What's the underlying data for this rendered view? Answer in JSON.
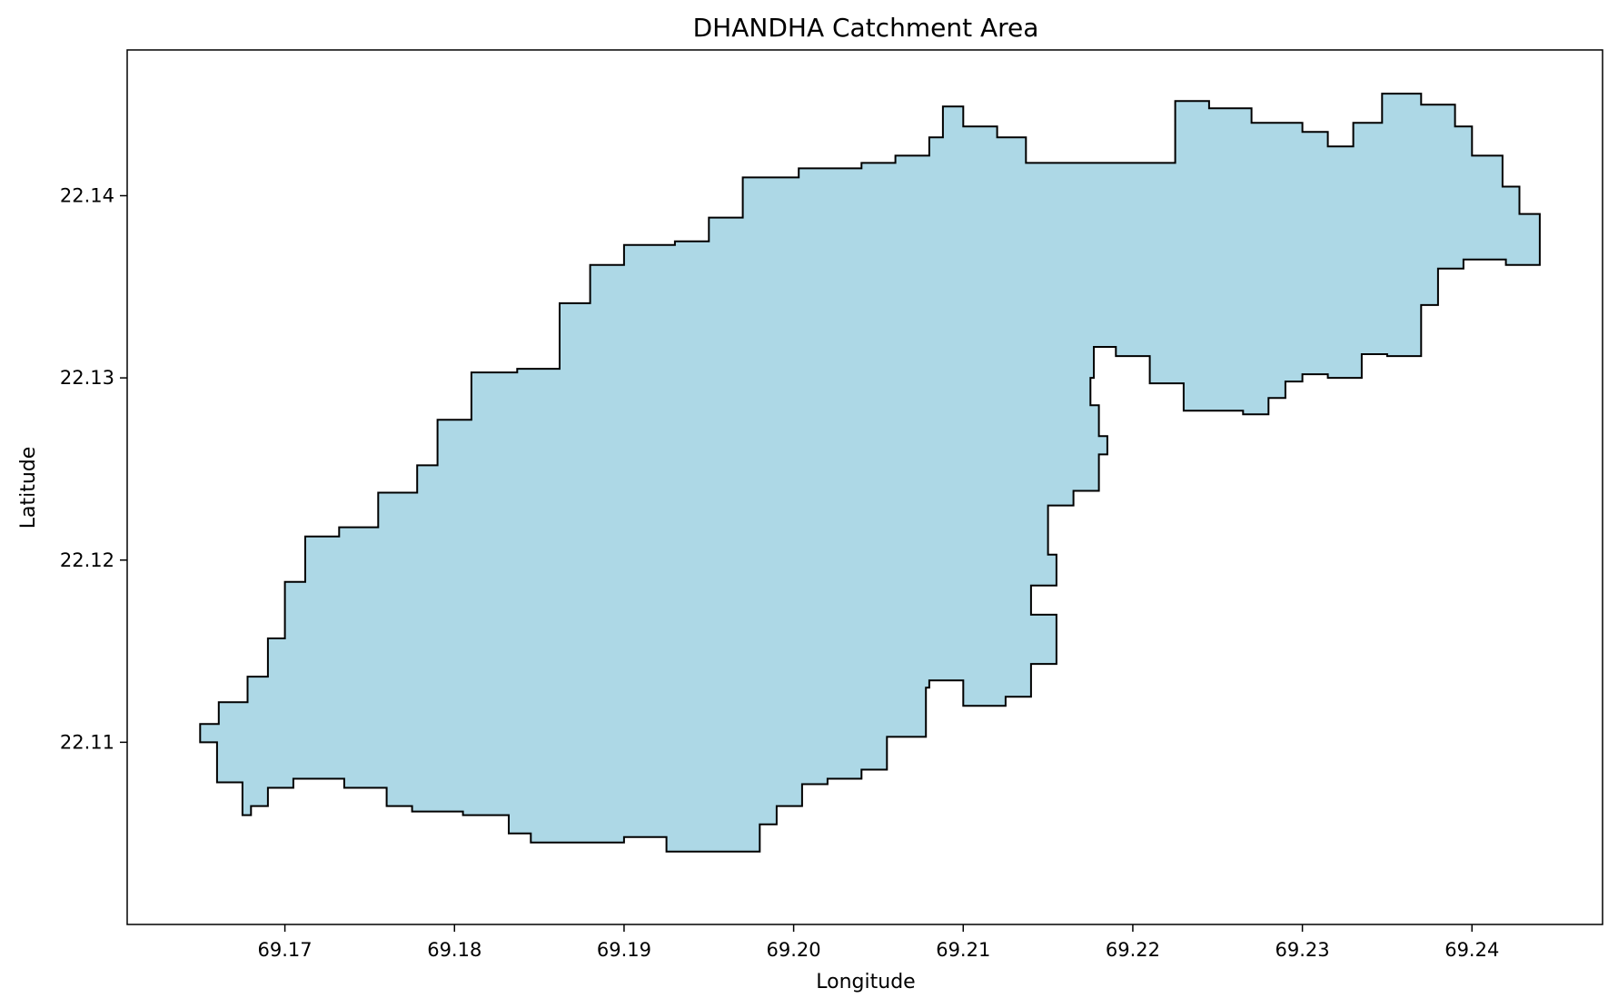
{
  "chart_data": {
    "type": "map",
    "title": "DHANDHA Catchment Area",
    "xlabel": "Longitude",
    "ylabel": "Latitude",
    "xlim": [
      69.1607,
      69.2477
    ],
    "ylim": [
      22.1,
      22.148
    ],
    "xticks": [
      69.17,
      69.18,
      69.19,
      69.2,
      69.21,
      69.22,
      69.23,
      69.24
    ],
    "xtick_labels": [
      "69.17",
      "69.18",
      "69.19",
      "69.20",
      "69.21",
      "69.22",
      "69.23",
      "69.24"
    ],
    "yticks": [
      22.11,
      22.12,
      22.13,
      22.14
    ],
    "ytick_labels": [
      "22.11",
      "22.12",
      "22.13",
      "22.14"
    ],
    "grid": false,
    "polygon": {
      "name": "DHANDHA",
      "fill": "#add8e6",
      "edge": "#000000",
      "coordinates": [
        [
          69.165,
          22.111
        ],
        [
          69.1661,
          22.1122
        ],
        [
          69.1678,
          22.1136
        ],
        [
          69.169,
          22.1157
        ],
        [
          69.17,
          22.1188
        ],
        [
          69.1712,
          22.1213
        ],
        [
          69.1732,
          22.1218
        ],
        [
          69.1755,
          22.1237
        ],
        [
          69.1778,
          22.1252
        ],
        [
          69.179,
          22.1277
        ],
        [
          69.18,
          22.1277
        ],
        [
          69.181,
          22.1303
        ],
        [
          69.1837,
          22.1305
        ],
        [
          69.1862,
          22.1341
        ],
        [
          69.188,
          22.1362
        ],
        [
          69.19,
          22.1373
        ],
        [
          69.193,
          22.1375
        ],
        [
          69.195,
          22.1388
        ],
        [
          69.197,
          22.141
        ],
        [
          69.199,
          22.141
        ],
        [
          69.2003,
          22.1415
        ],
        [
          69.204,
          22.1418
        ],
        [
          69.206,
          22.1422
        ],
        [
          69.208,
          22.1432
        ],
        [
          69.2088,
          22.1449
        ],
        [
          69.21,
          22.1438
        ],
        [
          69.212,
          22.1432
        ],
        [
          69.2137,
          22.1418
        ],
        [
          69.216,
          22.1418
        ],
        [
          69.218,
          22.1418
        ],
        [
          69.22,
          22.1418
        ],
        [
          69.2225,
          22.1452
        ],
        [
          69.2245,
          22.1448
        ],
        [
          69.227,
          22.144
        ],
        [
          69.23,
          22.1435
        ],
        [
          69.2315,
          22.1427
        ],
        [
          69.233,
          22.144
        ],
        [
          69.2347,
          22.1456
        ],
        [
          69.237,
          22.145
        ],
        [
          69.239,
          22.1438
        ],
        [
          69.24,
          22.1422
        ],
        [
          69.2418,
          22.1405
        ],
        [
          69.2428,
          22.139
        ],
        [
          69.244,
          22.1378
        ],
        [
          69.244,
          22.1362
        ],
        [
          69.242,
          22.1365
        ],
        [
          69.2395,
          22.136
        ],
        [
          69.238,
          22.134
        ],
        [
          69.237,
          22.1312
        ],
        [
          69.235,
          22.1313
        ],
        [
          69.2335,
          22.13
        ],
        [
          69.2315,
          22.1302
        ],
        [
          69.23,
          22.1298
        ],
        [
          69.229,
          22.1289
        ],
        [
          69.228,
          22.128
        ],
        [
          69.2265,
          22.1282
        ],
        [
          69.225,
          22.1282
        ],
        [
          69.223,
          22.1297
        ],
        [
          69.221,
          22.1312
        ],
        [
          69.219,
          22.1317
        ],
        [
          69.2177,
          22.13
        ],
        [
          69.2175,
          22.1285
        ],
        [
          69.218,
          22.1268
        ],
        [
          69.2185,
          22.1258
        ],
        [
          69.218,
          22.1238
        ],
        [
          69.2165,
          22.123
        ],
        [
          69.215,
          22.1203
        ],
        [
          69.2155,
          22.1186
        ],
        [
          69.214,
          22.117
        ],
        [
          69.2155,
          22.1157
        ],
        [
          69.2155,
          22.1143
        ],
        [
          69.214,
          22.1125
        ],
        [
          69.2125,
          22.112
        ],
        [
          69.21,
          22.1134
        ],
        [
          69.208,
          22.113
        ],
        [
          69.2078,
          22.1103
        ],
        [
          69.2055,
          22.1085
        ],
        [
          69.204,
          22.108
        ],
        [
          69.202,
          22.1077
        ],
        [
          69.2005,
          22.1065
        ],
        [
          69.199,
          22.1055
        ],
        [
          69.198,
          22.104
        ],
        [
          69.195,
          22.104
        ],
        [
          69.1925,
          22.1048
        ],
        [
          69.19,
          22.1045
        ],
        [
          69.187,
          22.1045
        ],
        [
          69.1845,
          22.105
        ],
        [
          69.1832,
          22.106
        ],
        [
          69.1805,
          22.1062
        ],
        [
          69.1775,
          22.1065
        ],
        [
          69.176,
          22.1075
        ],
        [
          69.1735,
          22.108
        ],
        [
          69.1705,
          22.1075
        ],
        [
          69.169,
          22.1065
        ],
        [
          69.168,
          22.106
        ],
        [
          69.1675,
          22.1078
        ],
        [
          69.166,
          22.11
        ],
        [
          69.165,
          22.111
        ]
      ]
    }
  }
}
